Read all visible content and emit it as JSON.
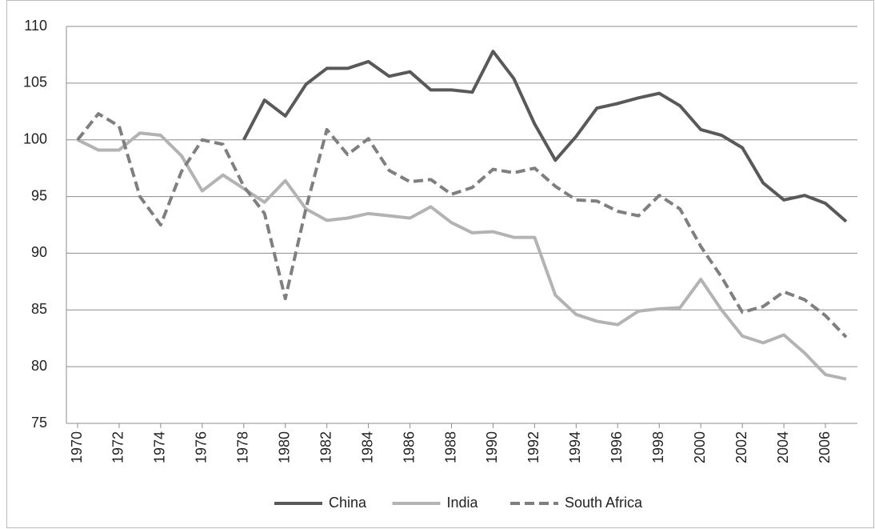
{
  "chart_data": {
    "type": "line",
    "x": [
      1970,
      1971,
      1972,
      1973,
      1974,
      1975,
      1976,
      1977,
      1978,
      1979,
      1980,
      1981,
      1982,
      1983,
      1984,
      1985,
      1986,
      1987,
      1988,
      1989,
      1990,
      1991,
      1992,
      1993,
      1994,
      1995,
      1996,
      1997,
      1998,
      1999,
      2000,
      2001,
      2002,
      2003,
      2004,
      2005,
      2006,
      2007
    ],
    "xlim": [
      1970,
      2007
    ],
    "xticks": [
      1970,
      1972,
      1974,
      1976,
      1978,
      1980,
      1982,
      1984,
      1986,
      1988,
      1990,
      1992,
      1994,
      1996,
      1998,
      2000,
      2002,
      2004,
      2006
    ],
    "ylim": [
      75,
      110
    ],
    "yticks": [
      75,
      80,
      85,
      90,
      95,
      100,
      105,
      110
    ],
    "grid": true,
    "legend": "bottom",
    "series": [
      {
        "name": "China",
        "color": "#595959",
        "dash": false,
        "values": [
          null,
          null,
          null,
          null,
          null,
          null,
          null,
          null,
          100,
          103.5,
          102.1,
          104.9,
          106.3,
          106.3,
          106.9,
          105.6,
          106.0,
          104.4,
          104.4,
          104.2,
          107.8,
          105.4,
          101.4,
          98.2,
          100.3,
          102.8,
          103.2,
          103.7,
          104.1,
          103.0,
          100.9,
          100.4,
          99.3,
          96.2,
          94.7,
          95.1,
          94.4,
          92.8
        ]
      },
      {
        "name": "India",
        "color": "#b3b3b3",
        "dash": false,
        "values": [
          100,
          99.1,
          99.1,
          100.6,
          100.4,
          98.6,
          95.5,
          96.9,
          95.7,
          94.5,
          96.4,
          93.9,
          92.9,
          93.1,
          93.5,
          93.3,
          93.1,
          94.1,
          92.7,
          91.8,
          91.9,
          91.4,
          91.4,
          86.3,
          84.6,
          84.0,
          83.7,
          84.9,
          85.1,
          85.2,
          87.7,
          85.0,
          82.7,
          82.1,
          82.8,
          81.2,
          79.3,
          78.9
        ]
      },
      {
        "name": "South Africa",
        "color": "#7f7f7f",
        "dash": true,
        "values": [
          100,
          102.3,
          101.2,
          95.0,
          92.5,
          97.2,
          100.0,
          99.6,
          95.9,
          93.5,
          86.0,
          94.0,
          100.9,
          98.7,
          100.1,
          97.3,
          96.3,
          96.5,
          95.2,
          95.8,
          97.4,
          97.1,
          97.5,
          95.9,
          94.7,
          94.6,
          93.7,
          93.3,
          95.1,
          93.9,
          90.6,
          87.9,
          84.8,
          85.3,
          86.6,
          85.9,
          84.5,
          82.6
        ]
      }
    ]
  }
}
